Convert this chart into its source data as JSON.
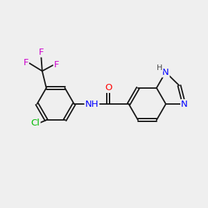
{
  "bg_color": "#efefef",
  "bond_color": "#1a1a1a",
  "atom_colors": {
    "F": "#cc00cc",
    "Cl": "#00bb00",
    "N": "#0000ff",
    "O": "#ff0000",
    "H": "#444444"
  },
  "font_size_atom": 9.5,
  "font_size_small": 8.0,
  "lw": 1.4
}
